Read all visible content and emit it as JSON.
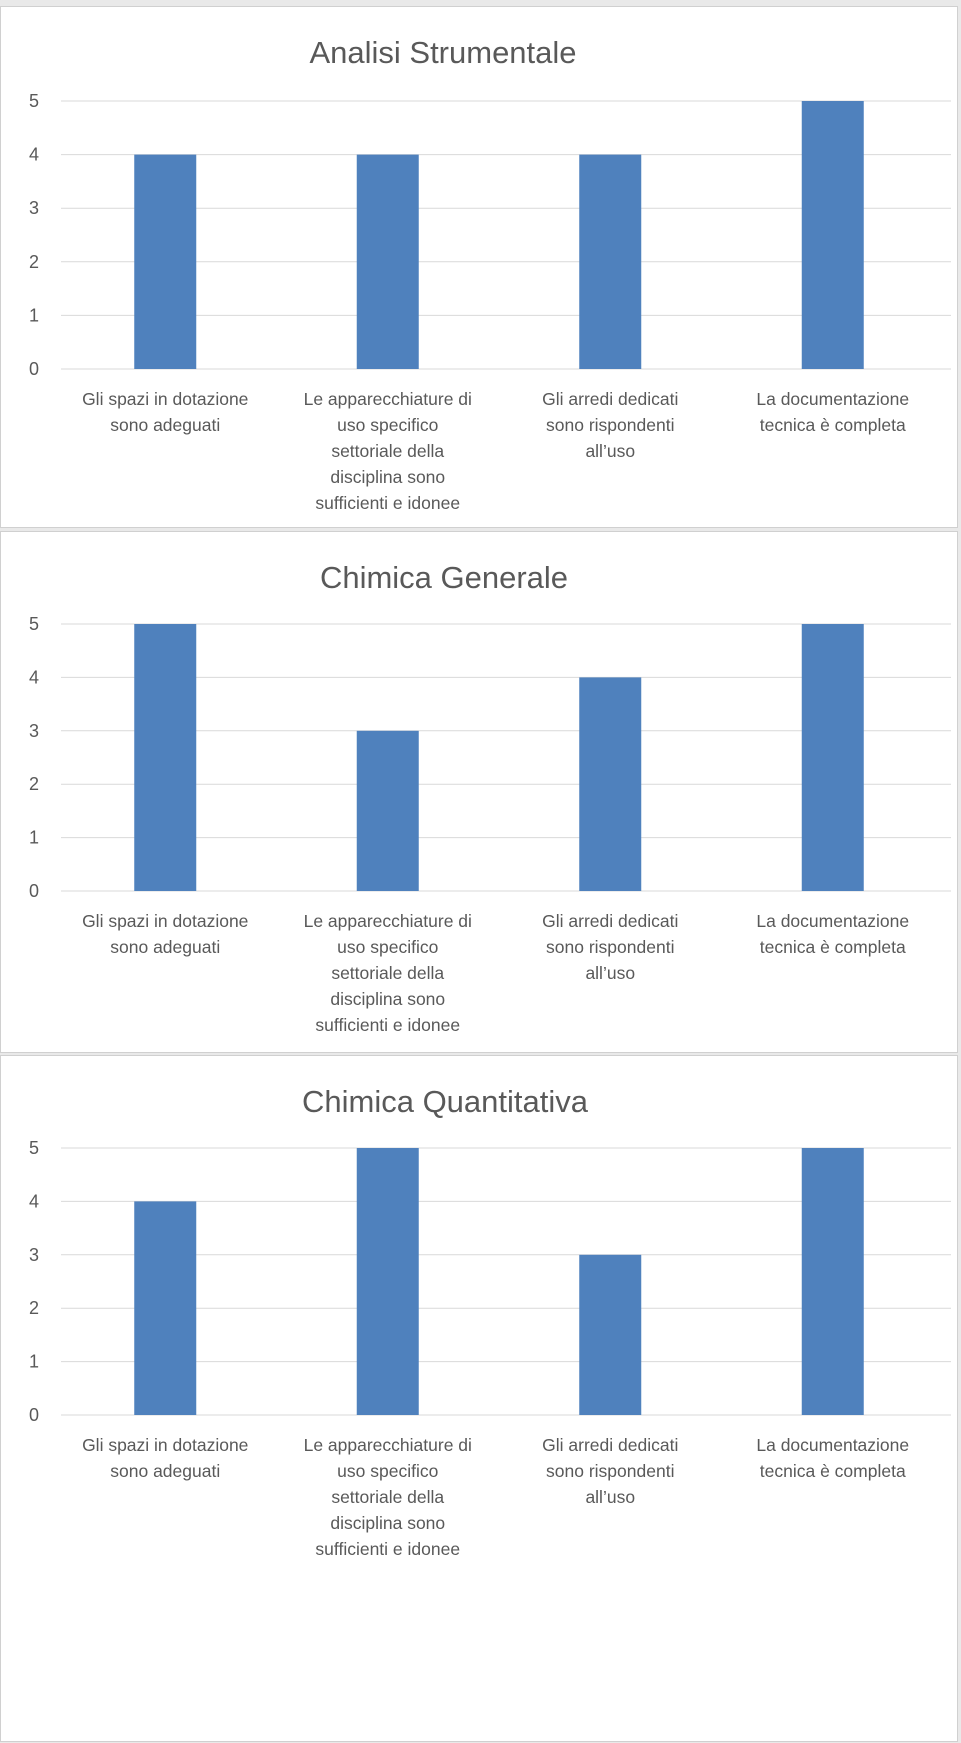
{
  "chart_data": [
    {
      "type": "bar",
      "title": "Analisi Strumentale",
      "categories": [
        "Gli spazi in dotazione sono adeguati",
        "Le apparecchiature di uso specifico settoriale della disciplina sono sufficienti e idonee",
        "Gli arredi dedicati sono rispondenti all’uso",
        "La documentazione tecnica è completa"
      ],
      "category_lines": [
        [
          "Gli spazi in dotazione",
          "sono adeguati"
        ],
        [
          "Le apparecchiature di",
          "uso specifico",
          "settoriale della",
          "disciplina sono",
          "sufficienti e idonee"
        ],
        [
          "Gli arredi dedicati",
          "sono rispondenti",
          "all’uso"
        ],
        [
          "La documentazione",
          "tecnica è completa"
        ]
      ],
      "values": [
        4,
        4,
        4,
        5
      ],
      "yticks": [
        "0",
        "1",
        "2",
        "3",
        "4",
        "5"
      ],
      "ylim": [
        0,
        5
      ],
      "xlabel": "",
      "ylabel": "",
      "grid": true,
      "legend": false,
      "bar_color": "#4f81bd"
    },
    {
      "type": "bar",
      "title": "Chimica Generale",
      "categories": [
        "Gli spazi in dotazione sono adeguati",
        "Le apparecchiature di uso specifico settoriale della disciplina sono sufficienti e idonee",
        "Gli arredi dedicati sono rispondenti all’uso",
        "La documentazione tecnica è completa"
      ],
      "category_lines": [
        [
          "Gli spazi in dotazione",
          "sono adeguati"
        ],
        [
          "Le apparecchiature di",
          "uso specifico",
          "settoriale della",
          "disciplina sono",
          "sufficienti e idonee"
        ],
        [
          "Gli arredi dedicati",
          "sono rispondenti",
          "all’uso"
        ],
        [
          "La documentazione",
          "tecnica è completa"
        ]
      ],
      "values": [
        5,
        3,
        4,
        5
      ],
      "yticks": [
        "0",
        "1",
        "2",
        "3",
        "4",
        "5"
      ],
      "ylim": [
        0,
        5
      ],
      "xlabel": "",
      "ylabel": "",
      "grid": true,
      "legend": false,
      "bar_color": "#4f81bd"
    },
    {
      "type": "bar",
      "title": "Chimica Quantitativa",
      "categories": [
        "Gli spazi in dotazione sono adeguati",
        "Le apparecchiature di uso specifico settoriale della disciplina sono sufficienti e idonee",
        "Gli arredi dedicati sono rispondenti all’uso",
        "La documentazione tecnica è completa"
      ],
      "category_lines": [
        [
          "Gli spazi in dotazione",
          "sono adeguati"
        ],
        [
          "Le apparecchiature di",
          "uso specifico",
          "settoriale della",
          "disciplina sono",
          "sufficienti e idonee"
        ],
        [
          "Gli arredi dedicati",
          "sono rispondenti",
          "all’uso"
        ],
        [
          "La documentazione",
          "tecnica è completa"
        ]
      ],
      "values": [
        4,
        5,
        3,
        5
      ],
      "yticks": [
        "0",
        "1",
        "2",
        "3",
        "4",
        "5"
      ],
      "ylim": [
        0,
        5
      ],
      "xlabel": "",
      "ylabel": "",
      "grid": true,
      "legend": false,
      "bar_color": "#4f81bd"
    }
  ]
}
